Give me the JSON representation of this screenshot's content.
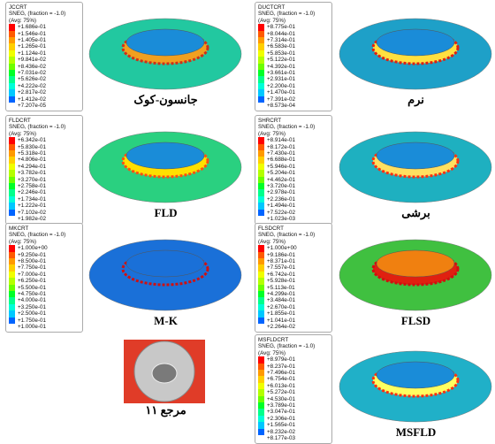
{
  "panels": [
    {
      "legend": {
        "title": "JCCRT",
        "subtitle": "SNEG, (fraction = -1.0)",
        "avg": "(Avg: 75%)",
        "values": [
          "+1.686e-01",
          "+1.546e-01",
          "+1.405e-01",
          "+1.265e-01",
          "+1.124e-01",
          "+9.841e-02",
          "+8.436e-02",
          "+7.031e-02",
          "+5.626e-02",
          "+4.222e-02",
          "+2.817e-02",
          "+1.412e-02",
          "+7.207e-05"
        ]
      },
      "caption": "جانسون-کوک"
    },
    {
      "legend": {
        "title": "DUCTCRT",
        "subtitle": "SNEG, (fraction = -1.0)",
        "avg": "(Avg: 75%)",
        "values": [
          "+8.775e-01",
          "+8.044e-01",
          "+7.314e-01",
          "+6.583e-01",
          "+5.853e-01",
          "+5.122e-01",
          "+4.392e-01",
          "+3.661e-01",
          "+2.931e-01",
          "+2.200e-01",
          "+1.470e-01",
          "+7.391e-02",
          "+8.573e-04"
        ]
      },
      "caption": "نرم"
    },
    {
      "legend": {
        "title": "FLDCRT",
        "subtitle": "SNEG, (fraction = -1.0)",
        "avg": "(Avg: 75%)",
        "values": [
          "+6.342e-01",
          "+5.830e-01",
          "+5.318e-01",
          "+4.806e-01",
          "+4.294e-01",
          "+3.782e-01",
          "+3.270e-01",
          "+2.758e-01",
          "+2.246e-01",
          "+1.734e-01",
          "+1.222e-01",
          "+7.102e-02",
          "+1.982e-02"
        ]
      },
      "caption": "FLD"
    },
    {
      "legend": {
        "title": "SHRCRT",
        "subtitle": "SNEG, (fraction = -1.0)",
        "avg": "(Avg: 75%)",
        "values": [
          "+8.914e-01",
          "+8.172e-01",
          "+7.430e-01",
          "+6.688e-01",
          "+5.946e-01",
          "+5.204e-01",
          "+4.462e-01",
          "+3.720e-01",
          "+2.978e-01",
          "+2.236e-01",
          "+1.494e-01",
          "+7.522e-02",
          "+1.023e-03"
        ]
      },
      "caption": "برشی"
    },
    {
      "legend": {
        "title": "MKCRT",
        "subtitle": "SNEG, (fraction = -1.0)",
        "avg": "(Avg: 75%)",
        "values": [
          "+1.000e+00",
          "+9.250e-01",
          "+8.500e-01",
          "+7.750e-01",
          "+7.000e-01",
          "+6.250e-01",
          "+5.500e-01",
          "+4.750e-01",
          "+4.000e-01",
          "+3.250e-01",
          "+2.500e-01",
          "+1.750e-01",
          "+1.000e-01"
        ]
      },
      "caption": "M-K"
    },
    {
      "legend": {
        "title": "FLSDCRT",
        "subtitle": "SNEG, (fraction = -1.0)",
        "avg": "(Avg: 75%)",
        "values": [
          "+1.000e+00",
          "+9.186e-01",
          "+8.371e-01",
          "+7.557e-01",
          "+6.742e-01",
          "+5.928e-01",
          "+5.113e-01",
          "+4.299e-01",
          "+3.484e-01",
          "+2.670e-01",
          "+1.855e-01",
          "+1.041e-01",
          "+2.264e-02"
        ]
      },
      "caption": "FLSD"
    },
    {
      "caption": "مرجع ۱۱"
    },
    {
      "legend": {
        "title": "MSFLDCRT",
        "subtitle": "SNEG, (fraction = -1.0)",
        "avg": "(Avg: 75%)",
        "values": [
          "+8.979e-01",
          "+8.237e-01",
          "+7.496e-01",
          "+6.754e-01",
          "+6.013e-01",
          "+5.272e-01",
          "+4.530e-01",
          "+3.789e-01",
          "+3.047e-01",
          "+2.306e-01",
          "+1.565e-01",
          "+8.232e-02",
          "+8.177e-03"
        ]
      },
      "caption": "MSFLD"
    }
  ]
}
